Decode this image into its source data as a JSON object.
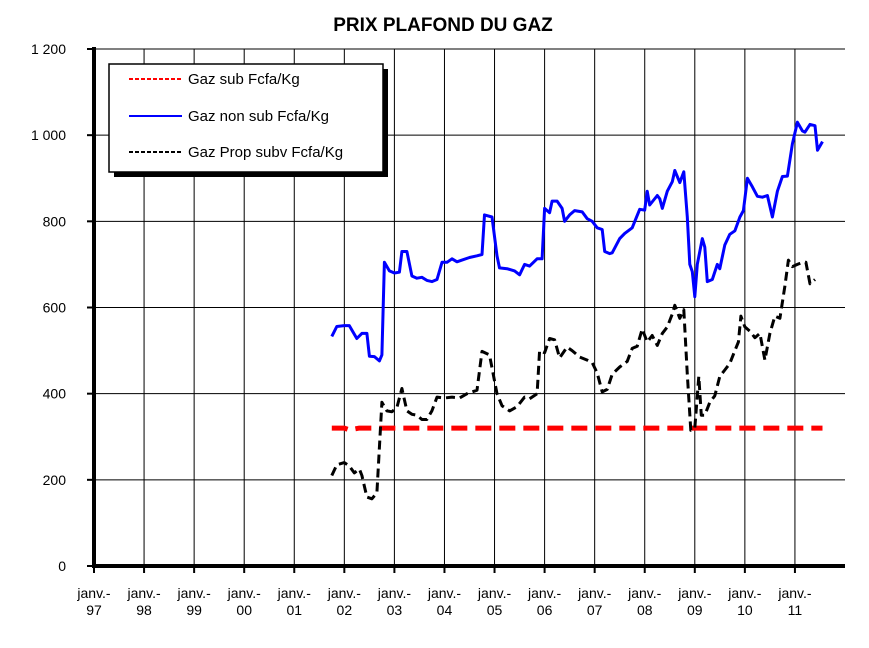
{
  "chart_data": {
    "type": "line",
    "title": "PRIX PLAFOND DU GAZ",
    "xlabel": "",
    "ylabel": "",
    "ylim": [
      0,
      1200
    ],
    "yticks": [
      0,
      200,
      400,
      600,
      800,
      1000,
      1200
    ],
    "ytick_labels": [
      "0",
      "200",
      "400",
      "600",
      "800",
      "1 000",
      "1 200"
    ],
    "xlim": [
      1997,
      2012
    ],
    "xticks": [
      {
        "x": 1997,
        "line1": "janv.-",
        "line2": "97"
      },
      {
        "x": 1998,
        "line1": "janv.-",
        "line2": "98"
      },
      {
        "x": 1999,
        "line1": "janv.-",
        "line2": "99"
      },
      {
        "x": 2000,
        "line1": "janv.-",
        "line2": "00"
      },
      {
        "x": 2001,
        "line1": "janv.-",
        "line2": "01"
      },
      {
        "x": 2002,
        "line1": "janv.-",
        "line2": "02"
      },
      {
        "x": 2003,
        "line1": "janv.-",
        "line2": "03"
      },
      {
        "x": 2004,
        "line1": "janv.-",
        "line2": "04"
      },
      {
        "x": 2005,
        "line1": "janv.-",
        "line2": "05"
      },
      {
        "x": 2006,
        "line1": "janv.-",
        "line2": "06"
      },
      {
        "x": 2007,
        "line1": "janv.-",
        "line2": "07"
      },
      {
        "x": 2008,
        "line1": "janv.-",
        "line2": "08"
      },
      {
        "x": 2009,
        "line1": "janv.-",
        "line2": "09"
      },
      {
        "x": 2010,
        "line1": "janv.-",
        "line2": "10"
      },
      {
        "x": 2011,
        "line1": "janv.-",
        "line2": "11"
      }
    ],
    "grid": true,
    "legend_position": "top-left",
    "series": [
      {
        "name": "Gaz sub Fcfa/Kg",
        "color": "#ff0000",
        "style": "dashed",
        "points": [
          [
            2001.75,
            320
          ],
          [
            2002.0,
            320
          ],
          [
            2002.1,
            316
          ],
          [
            2002.3,
            320
          ],
          [
            2011.55,
            320
          ]
        ]
      },
      {
        "name": "Gaz non sub Fcfa/Kg",
        "color": "#0000ff",
        "style": "solid",
        "points": [
          [
            2001.75,
            533
          ],
          [
            2001.85,
            556
          ],
          [
            2002.0,
            558
          ],
          [
            2002.1,
            558
          ],
          [
            2002.25,
            528
          ],
          [
            2002.35,
            540
          ],
          [
            2002.45,
            540
          ],
          [
            2002.5,
            487
          ],
          [
            2002.6,
            486
          ],
          [
            2002.7,
            476
          ],
          [
            2002.75,
            490
          ],
          [
            2002.8,
            705
          ],
          [
            2002.9,
            685
          ],
          [
            2003.0,
            680
          ],
          [
            2003.1,
            682
          ],
          [
            2003.15,
            730
          ],
          [
            2003.25,
            730
          ],
          [
            2003.35,
            673
          ],
          [
            2003.45,
            668
          ],
          [
            2003.55,
            670
          ],
          [
            2003.65,
            663
          ],
          [
            2003.75,
            660
          ],
          [
            2003.85,
            665
          ],
          [
            2003.95,
            705
          ],
          [
            2004.05,
            705
          ],
          [
            2004.15,
            713
          ],
          [
            2004.25,
            706
          ],
          [
            2004.35,
            710
          ],
          [
            2004.5,
            716
          ],
          [
            2004.65,
            720
          ],
          [
            2004.75,
            723
          ],
          [
            2004.8,
            815
          ],
          [
            2004.95,
            810
          ],
          [
            2005.05,
            720
          ],
          [
            2005.1,
            692
          ],
          [
            2005.25,
            690
          ],
          [
            2005.4,
            685
          ],
          [
            2005.5,
            676
          ],
          [
            2005.6,
            700
          ],
          [
            2005.7,
            696
          ],
          [
            2005.85,
            713
          ],
          [
            2005.95,
            713
          ],
          [
            2006.0,
            830
          ],
          [
            2006.1,
            820
          ],
          [
            2006.15,
            847
          ],
          [
            2006.25,
            847
          ],
          [
            2006.35,
            830
          ],
          [
            2006.4,
            800
          ],
          [
            2006.5,
            815
          ],
          [
            2006.6,
            825
          ],
          [
            2006.75,
            822
          ],
          [
            2006.85,
            806
          ],
          [
            2006.95,
            800
          ],
          [
            2007.05,
            785
          ],
          [
            2007.15,
            781
          ],
          [
            2007.2,
            730
          ],
          [
            2007.3,
            725
          ],
          [
            2007.35,
            727
          ],
          [
            2007.5,
            760
          ],
          [
            2007.6,
            772
          ],
          [
            2007.75,
            785
          ],
          [
            2007.9,
            828
          ],
          [
            2008.0,
            826
          ],
          [
            2008.05,
            870
          ],
          [
            2008.1,
            838
          ],
          [
            2008.25,
            860
          ],
          [
            2008.3,
            852
          ],
          [
            2008.35,
            830
          ],
          [
            2008.45,
            870
          ],
          [
            2008.55,
            892
          ],
          [
            2008.6,
            918
          ],
          [
            2008.7,
            890
          ],
          [
            2008.78,
            915
          ],
          [
            2008.85,
            810
          ],
          [
            2008.9,
            700
          ],
          [
            2008.95,
            683
          ],
          [
            2009.0,
            625
          ],
          [
            2009.05,
            700
          ],
          [
            2009.15,
            760
          ],
          [
            2009.2,
            740
          ],
          [
            2009.25,
            660
          ],
          [
            2009.35,
            665
          ],
          [
            2009.45,
            700
          ],
          [
            2009.5,
            690
          ],
          [
            2009.6,
            745
          ],
          [
            2009.7,
            770
          ],
          [
            2009.8,
            778
          ],
          [
            2009.9,
            810
          ],
          [
            2009.97,
            825
          ],
          [
            2010.05,
            900
          ],
          [
            2010.15,
            880
          ],
          [
            2010.25,
            858
          ],
          [
            2010.35,
            856
          ],
          [
            2010.45,
            860
          ],
          [
            2010.55,
            810
          ],
          [
            2010.65,
            870
          ],
          [
            2010.75,
            904
          ],
          [
            2010.85,
            905
          ],
          [
            2010.95,
            980
          ],
          [
            2011.05,
            1030
          ],
          [
            2011.15,
            1010
          ],
          [
            2011.2,
            1007
          ],
          [
            2011.3,
            1025
          ],
          [
            2011.4,
            1022
          ],
          [
            2011.45,
            965
          ],
          [
            2011.55,
            985
          ]
        ]
      },
      {
        "name": "Gaz Prop subv Fcfa/Kg",
        "color": "#000000",
        "style": "dashed",
        "points": [
          [
            2001.75,
            210
          ],
          [
            2001.85,
            235
          ],
          [
            2002.0,
            240
          ],
          [
            2002.1,
            232
          ],
          [
            2002.2,
            216
          ],
          [
            2002.3,
            225
          ],
          [
            2002.35,
            210
          ],
          [
            2002.45,
            160
          ],
          [
            2002.55,
            156
          ],
          [
            2002.65,
            170
          ],
          [
            2002.75,
            380
          ],
          [
            2002.85,
            360
          ],
          [
            2002.95,
            358
          ],
          [
            2003.05,
            368
          ],
          [
            2003.15,
            412
          ],
          [
            2003.25,
            360
          ],
          [
            2003.35,
            352
          ],
          [
            2003.45,
            350
          ],
          [
            2003.55,
            340
          ],
          [
            2003.65,
            340
          ],
          [
            2003.75,
            360
          ],
          [
            2003.85,
            392
          ],
          [
            2004.0,
            390
          ],
          [
            2004.15,
            392
          ],
          [
            2004.3,
            390
          ],
          [
            2004.45,
            400
          ],
          [
            2004.65,
            408
          ],
          [
            2004.75,
            498
          ],
          [
            2004.9,
            490
          ],
          [
            2005.05,
            400
          ],
          [
            2005.15,
            372
          ],
          [
            2005.3,
            360
          ],
          [
            2005.45,
            370
          ],
          [
            2005.6,
            392
          ],
          [
            2005.7,
            388
          ],
          [
            2005.85,
            400
          ],
          [
            2005.9,
            500
          ],
          [
            2006.0,
            495
          ],
          [
            2006.1,
            528
          ],
          [
            2006.2,
            525
          ],
          [
            2006.3,
            483
          ],
          [
            2006.45,
            508
          ],
          [
            2006.55,
            500
          ],
          [
            2006.7,
            485
          ],
          [
            2006.85,
            478
          ],
          [
            2006.95,
            472
          ],
          [
            2007.05,
            448
          ],
          [
            2007.15,
            404
          ],
          [
            2007.25,
            410
          ],
          [
            2007.35,
            445
          ],
          [
            2007.5,
            462
          ],
          [
            2007.65,
            475
          ],
          [
            2007.75,
            505
          ],
          [
            2007.85,
            510
          ],
          [
            2007.95,
            550
          ],
          [
            2008.05,
            520
          ],
          [
            2008.15,
            535
          ],
          [
            2008.25,
            512
          ],
          [
            2008.35,
            540
          ],
          [
            2008.45,
            555
          ],
          [
            2008.55,
            585
          ],
          [
            2008.6,
            605
          ],
          [
            2008.7,
            575
          ],
          [
            2008.78,
            595
          ],
          [
            2008.85,
            445
          ],
          [
            2008.92,
            315
          ],
          [
            2009.0,
            320
          ],
          [
            2009.08,
            440
          ],
          [
            2009.13,
            350
          ],
          [
            2009.2,
            350
          ],
          [
            2009.3,
            380
          ],
          [
            2009.4,
            395
          ],
          [
            2009.5,
            440
          ],
          [
            2009.6,
            455
          ],
          [
            2009.7,
            470
          ],
          [
            2009.8,
            500
          ],
          [
            2009.87,
            520
          ],
          [
            2009.92,
            580
          ],
          [
            2010.0,
            555
          ],
          [
            2010.1,
            545
          ],
          [
            2010.2,
            530
          ],
          [
            2010.3,
            540
          ],
          [
            2010.4,
            478
          ],
          [
            2010.5,
            540
          ],
          [
            2010.6,
            580
          ],
          [
            2010.7,
            575
          ],
          [
            2010.8,
            650
          ],
          [
            2010.87,
            710
          ],
          [
            2010.95,
            695
          ],
          [
            2011.05,
            700
          ],
          [
            2011.15,
            705
          ],
          [
            2011.22,
            705
          ],
          [
            2011.3,
            655
          ],
          [
            2011.4,
            665
          ]
        ]
      }
    ]
  }
}
